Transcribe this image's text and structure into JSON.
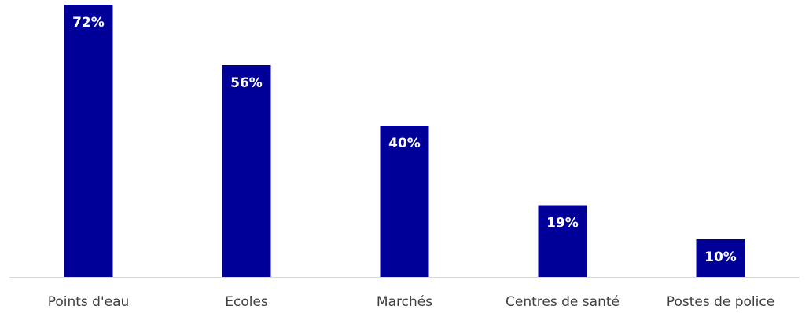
{
  "chart_data": {
    "type": "bar",
    "categories": [
      "Points d'eau",
      "Ecoles",
      "Marchés",
      "Centres de santé",
      "Postes de police"
    ],
    "values": [
      72,
      56,
      40,
      19,
      10
    ],
    "value_labels": [
      "72%",
      "56%",
      "40%",
      "19%",
      "10%"
    ],
    "unit": "%",
    "title": "",
    "xlabel": "",
    "ylabel": "",
    "ylim": [
      0,
      72
    ],
    "grid": false,
    "legend": "none",
    "bar_color": "#000099",
    "axis_color": "#d9d9d9",
    "label_color": "#ffffff",
    "tick_label_color": "#404040"
  }
}
